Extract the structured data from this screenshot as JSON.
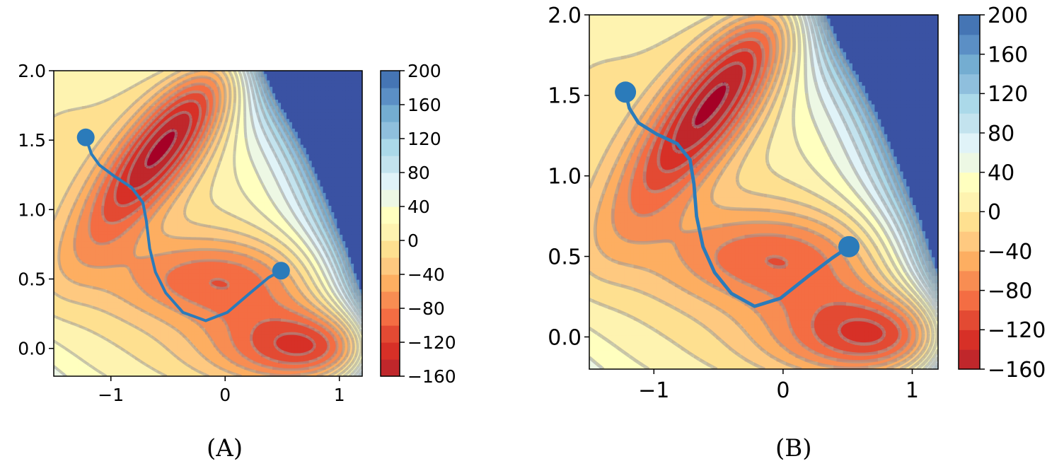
{
  "figure": {
    "captions": [
      "(A)",
      "(B)"
    ]
  },
  "chart_data": [
    {
      "type": "contour",
      "subfigure": "(A)",
      "xlim": [
        -1.5,
        1.2
      ],
      "ylim": [
        -0.2,
        2.0
      ],
      "xticks": [
        -1,
        0,
        1
      ],
      "xtick_labels": [
        "−1",
        "0",
        "1"
      ],
      "yticks": [
        0.0,
        0.5,
        1.0,
        1.5,
        2.0
      ],
      "ytick_labels": [
        "0.0",
        "0.5",
        "1.0",
        "1.5",
        "2.0"
      ],
      "colorbar": {
        "levels": [
          -160,
          -140,
          -120,
          -100,
          -80,
          -60,
          -40,
          -20,
          0,
          20,
          40,
          60,
          80,
          100,
          120,
          140,
          160,
          180,
          200
        ],
        "tick_values": [
          -160,
          -120,
          -80,
          -40,
          0,
          40,
          80,
          120,
          160,
          200
        ],
        "tick_labels": [
          "−160",
          "−120",
          "−80",
          "−40",
          "0",
          "40",
          "80",
          "120",
          "160",
          "200"
        ],
        "colors": [
          "#a50026",
          "#c0272b",
          "#d73027",
          "#e34a33",
          "#f46d43",
          "#f88d52",
          "#fdae61",
          "#fec980",
          "#fee090",
          "#fef3b0",
          "#ffffbf",
          "#edf8e4",
          "#e0f3f8",
          "#c3e3ee",
          "#abd9e9",
          "#8fbfdd",
          "#74add1",
          "#5b8fc5",
          "#4575b4",
          "#3a52a3"
        ]
      },
      "path": [
        [
          -1.22,
          1.52
        ],
        [
          -1.17,
          1.4
        ],
        [
          -1.1,
          1.32
        ],
        [
          -0.97,
          1.24
        ],
        [
          -0.82,
          1.16
        ],
        [
          -0.72,
          1.05
        ],
        [
          -0.69,
          0.92
        ],
        [
          -0.66,
          0.72
        ],
        [
          -0.61,
          0.55
        ],
        [
          -0.52,
          0.4
        ],
        [
          -0.37,
          0.26
        ],
        [
          -0.17,
          0.2
        ],
        [
          0.02,
          0.26
        ],
        [
          0.22,
          0.4
        ],
        [
          0.38,
          0.51
        ],
        [
          0.49,
          0.56
        ]
      ],
      "markers": [
        [
          -1.22,
          1.52
        ],
        [
          0.49,
          0.56
        ]
      ],
      "path_color": "#2b7bba"
    },
    {
      "type": "contour",
      "subfigure": "(B)",
      "xlim": [
        -1.5,
        1.2
      ],
      "ylim": [
        -0.2,
        2.0
      ],
      "xticks": [
        -1,
        0,
        1
      ],
      "xtick_labels": [
        "−1",
        "0",
        "1"
      ],
      "yticks": [
        0.0,
        0.5,
        1.0,
        1.5,
        2.0
      ],
      "ytick_labels": [
        "0.0",
        "0.5",
        "1.0",
        "1.5",
        "2.0"
      ],
      "colorbar": {
        "levels": [
          -160,
          -140,
          -120,
          -100,
          -80,
          -60,
          -40,
          -20,
          0,
          20,
          40,
          60,
          80,
          100,
          120,
          140,
          160,
          180,
          200
        ],
        "tick_values": [
          -160,
          -120,
          -80,
          -40,
          0,
          40,
          80,
          120,
          160,
          200
        ],
        "tick_labels": [
          "−160",
          "−120",
          "−80",
          "−40",
          "0",
          "40",
          "80",
          "120",
          "160",
          "200"
        ],
        "colors": [
          "#a50026",
          "#c0272b",
          "#d73027",
          "#e34a33",
          "#f46d43",
          "#f88d52",
          "#fdae61",
          "#fec980",
          "#fee090",
          "#fef3b0",
          "#ffffbf",
          "#edf8e4",
          "#e0f3f8",
          "#c3e3ee",
          "#abd9e9",
          "#8fbfdd",
          "#74add1",
          "#5b8fc5",
          "#4575b4",
          "#3a52a3"
        ]
      },
      "path": [
        [
          -1.22,
          1.52
        ],
        [
          -1.19,
          1.42
        ],
        [
          -1.12,
          1.33
        ],
        [
          -0.98,
          1.26
        ],
        [
          -0.82,
          1.2
        ],
        [
          -0.72,
          1.1
        ],
        [
          -0.69,
          0.95
        ],
        [
          -0.67,
          0.75
        ],
        [
          -0.62,
          0.56
        ],
        [
          -0.53,
          0.4
        ],
        [
          -0.4,
          0.27
        ],
        [
          -0.22,
          0.19
        ],
        [
          -0.02,
          0.24
        ],
        [
          0.2,
          0.38
        ],
        [
          0.38,
          0.49
        ],
        [
          0.51,
          0.56
        ]
      ],
      "markers": [
        [
          -1.22,
          1.52
        ],
        [
          0.51,
          0.56
        ]
      ],
      "path_color": "#2b7bba"
    }
  ]
}
